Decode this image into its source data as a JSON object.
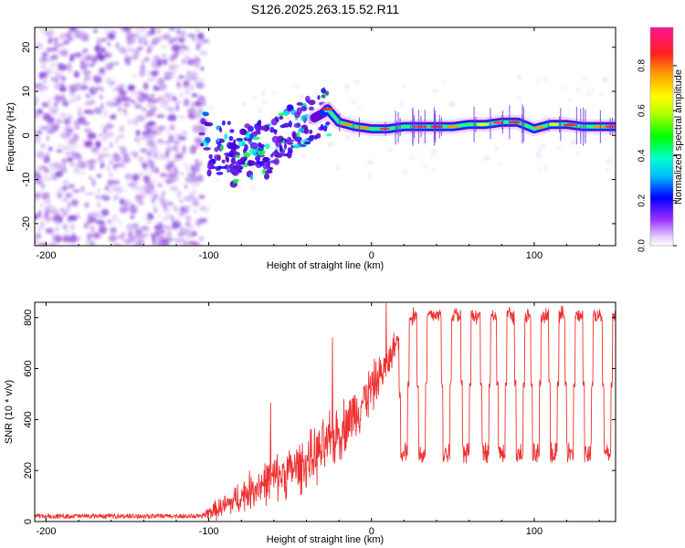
{
  "title": "S126.2025.263.15.52.R11",
  "colors": {
    "snr_line": "#ee3030",
    "spectrogram_noise": "#8a2be2",
    "spectrogram_peak": "#e0004a"
  },
  "chart_data": [
    {
      "type": "heatmap",
      "name": "spectrogram",
      "title": "S126.2025.263.15.52.R11",
      "xlabel": "Height of straight line (km)",
      "ylabel": "Frequency (Hz)",
      "xlim": [
        -207,
        150
      ],
      "ylim": [
        -25,
        24.5
      ],
      "xticks": [
        -200,
        -100,
        0,
        100
      ],
      "yticks": [
        -20,
        -10,
        0,
        10,
        20
      ],
      "ridge": {
        "x": [
          -108,
          -100,
          -90,
          -80,
          -70,
          -60,
          -50,
          -40,
          -30,
          -27,
          -20,
          -10,
          0,
          10,
          20,
          30,
          40,
          50,
          60,
          70,
          80,
          90,
          100,
          110,
          120,
          130,
          140,
          150
        ],
        "frequency": [
          3.5,
          -1,
          -2,
          -3,
          0,
          -1,
          1,
          3,
          5,
          6,
          3,
          2,
          1.5,
          1.5,
          2,
          2,
          2,
          2,
          2.5,
          2.5,
          3,
          3,
          1.5,
          2.5,
          2.5,
          2,
          2,
          2
        ]
      },
      "noise_region_x": [
        -207,
        -108
      ],
      "colorbar": {
        "label": "Normalized spectral amplitude",
        "range": [
          0.0,
          0.97
        ],
        "ticks": [
          0.0,
          0.2,
          0.4,
          0.6,
          0.8
        ]
      }
    },
    {
      "type": "line",
      "name": "snr",
      "xlabel": "Height of straight line (km)",
      "ylabel": "SNR (10 * v/v)",
      "xlim": [
        -207,
        150
      ],
      "ylim": [
        0,
        860
      ],
      "xticks": [
        -200,
        -100,
        0,
        100
      ],
      "yticks": [
        0,
        200,
        400,
        600,
        800
      ],
      "series": [
        {
          "name": "SNR",
          "envelope_x": [
            -207,
            -105,
            -100,
            -90,
            -80,
            -70,
            -60,
            -50,
            -40,
            -30,
            -20,
            -10,
            0,
            10,
            20,
            30,
            40,
            50,
            60,
            70,
            80,
            90,
            100,
            110,
            120,
            130,
            140,
            150
          ],
          "mean": [
            20,
            20,
            35,
            60,
            100,
            140,
            170,
            200,
            230,
            280,
            350,
            430,
            520,
            620,
            790,
            810,
            810,
            810,
            810,
            810,
            810,
            810,
            810,
            810,
            810,
            810,
            810,
            810
          ],
          "spread": [
            10,
            10,
            35,
            60,
            80,
            100,
            110,
            120,
            130,
            140,
            140,
            130,
            120,
            80,
            50,
            40,
            40,
            40,
            40,
            40,
            40,
            40,
            40,
            40,
            40,
            40,
            40,
            40
          ],
          "dropouts_x": [
            20,
            31,
            46,
            58,
            70,
            80,
            91,
            101,
            112,
            122,
            133,
            145
          ],
          "dropout_level": 270,
          "peaks": [
            [
              -62,
              465
            ],
            [
              -24,
              720
            ],
            [
              9,
              855
            ],
            [
              15,
              690
            ]
          ]
        }
      ]
    }
  ]
}
